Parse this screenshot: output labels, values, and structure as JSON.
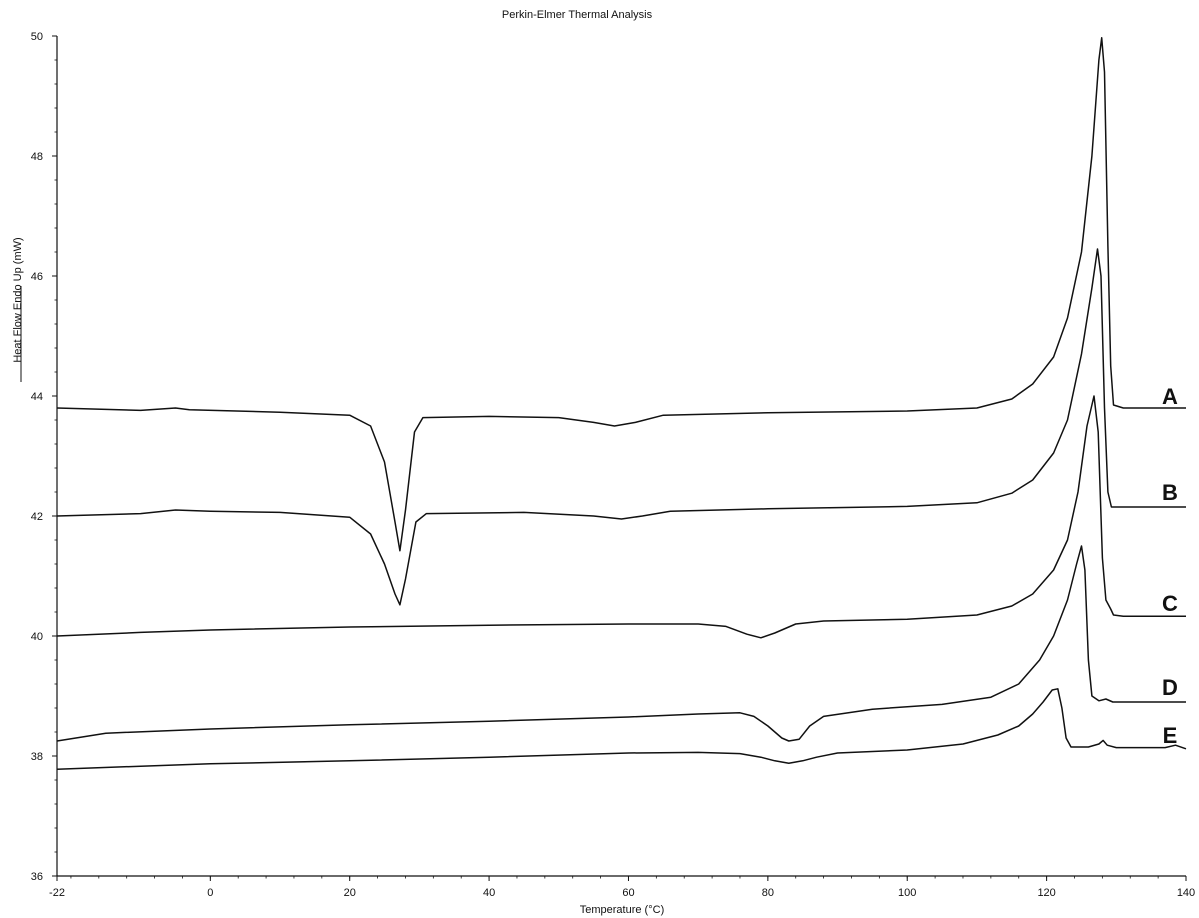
{
  "chart_data": {
    "type": "line",
    "title": "Perkin-Elmer Thermal Analysis",
    "xlabel": "Temperature (°C)",
    "ylabel": "Heat Flow Endo Up (mW)",
    "xlim": [
      -22,
      140
    ],
    "ylim": [
      36,
      50
    ],
    "x_ticks": [
      -22,
      0,
      20,
      40,
      60,
      80,
      100,
      120,
      140
    ],
    "y_ticks": [
      36,
      38,
      40,
      42,
      44,
      46,
      48,
      50
    ],
    "grid": false,
    "series": [
      {
        "name": "A",
        "color": "#111111",
        "points": [
          [
            -22,
            43.8
          ],
          [
            -10,
            43.76
          ],
          [
            -5,
            43.8
          ],
          [
            -3,
            43.77
          ],
          [
            10,
            43.73
          ],
          [
            20,
            43.68
          ],
          [
            23,
            43.5
          ],
          [
            25,
            42.9
          ],
          [
            26.5,
            41.9
          ],
          [
            27.2,
            41.42
          ],
          [
            28,
            42.1
          ],
          [
            29.3,
            43.4
          ],
          [
            30.5,
            43.64
          ],
          [
            40,
            43.66
          ],
          [
            50,
            43.64
          ],
          [
            55,
            43.56
          ],
          [
            58,
            43.5
          ],
          [
            61,
            43.56
          ],
          [
            65,
            43.68
          ],
          [
            80,
            43.72
          ],
          [
            100,
            43.75
          ],
          [
            110,
            43.8
          ],
          [
            115,
            43.95
          ],
          [
            118,
            44.2
          ],
          [
            121,
            44.65
          ],
          [
            123,
            45.3
          ],
          [
            125,
            46.4
          ],
          [
            126.5,
            48.0
          ],
          [
            127.5,
            49.6
          ],
          [
            127.9,
            49.97
          ],
          [
            128.3,
            49.4
          ],
          [
            128.8,
            46.5
          ],
          [
            129.2,
            44.5
          ],
          [
            129.6,
            43.85
          ],
          [
            131,
            43.8
          ],
          [
            140,
            43.8
          ]
        ],
        "label_y": 44.0
      },
      {
        "name": "B",
        "color": "#111111",
        "points": [
          [
            -22,
            42.0
          ],
          [
            -10,
            42.04
          ],
          [
            -5,
            42.1
          ],
          [
            0,
            42.08
          ],
          [
            10,
            42.06
          ],
          [
            20,
            41.98
          ],
          [
            23,
            41.7
          ],
          [
            25,
            41.2
          ],
          [
            26.5,
            40.7
          ],
          [
            27.2,
            40.52
          ],
          [
            28,
            40.95
          ],
          [
            29.5,
            41.9
          ],
          [
            31,
            42.04
          ],
          [
            45,
            42.06
          ],
          [
            55,
            42.0
          ],
          [
            59,
            41.95
          ],
          [
            62,
            42.0
          ],
          [
            66,
            42.08
          ],
          [
            80,
            42.12
          ],
          [
            100,
            42.16
          ],
          [
            110,
            42.22
          ],
          [
            115,
            42.38
          ],
          [
            118,
            42.6
          ],
          [
            121,
            43.05
          ],
          [
            123,
            43.6
          ],
          [
            125,
            44.7
          ],
          [
            126.5,
            45.8
          ],
          [
            127.3,
            46.45
          ],
          [
            127.8,
            46.0
          ],
          [
            128.3,
            43.8
          ],
          [
            128.8,
            42.4
          ],
          [
            129.3,
            42.15
          ],
          [
            131,
            42.15
          ],
          [
            140,
            42.15
          ]
        ],
        "label_y": 42.4
      },
      {
        "name": "C",
        "color": "#111111",
        "points": [
          [
            -22,
            40.0
          ],
          [
            -10,
            40.06
          ],
          [
            0,
            40.1
          ],
          [
            20,
            40.15
          ],
          [
            40,
            40.18
          ],
          [
            60,
            40.2
          ],
          [
            70,
            40.2
          ],
          [
            74,
            40.16
          ],
          [
            77,
            40.03
          ],
          [
            79,
            39.97
          ],
          [
            81,
            40.05
          ],
          [
            84,
            40.2
          ],
          [
            88,
            40.25
          ],
          [
            100,
            40.28
          ],
          [
            110,
            40.35
          ],
          [
            115,
            40.5
          ],
          [
            118,
            40.7
          ],
          [
            121,
            41.1
          ],
          [
            123,
            41.6
          ],
          [
            124.5,
            42.4
          ],
          [
            125.8,
            43.5
          ],
          [
            126.8,
            44.0
          ],
          [
            127.4,
            43.4
          ],
          [
            128.0,
            41.3
          ],
          [
            128.5,
            40.6
          ],
          [
            129.2,
            40.45
          ],
          [
            129.6,
            40.35
          ],
          [
            131,
            40.33
          ],
          [
            140,
            40.33
          ]
        ],
        "label_y": 40.55
      },
      {
        "name": "D",
        "color": "#111111",
        "points": [
          [
            -22,
            38.25
          ],
          [
            -15,
            38.38
          ],
          [
            0,
            38.45
          ],
          [
            20,
            38.52
          ],
          [
            40,
            38.58
          ],
          [
            60,
            38.65
          ],
          [
            70,
            38.7
          ],
          [
            76,
            38.72
          ],
          [
            78,
            38.66
          ],
          [
            80,
            38.5
          ],
          [
            82,
            38.3
          ],
          [
            83,
            38.25
          ],
          [
            84.5,
            38.28
          ],
          [
            86,
            38.5
          ],
          [
            88,
            38.66
          ],
          [
            95,
            38.78
          ],
          [
            105,
            38.86
          ],
          [
            112,
            38.98
          ],
          [
            116,
            39.2
          ],
          [
            119,
            39.6
          ],
          [
            121,
            40.0
          ],
          [
            123,
            40.6
          ],
          [
            124.3,
            41.2
          ],
          [
            125.0,
            41.5
          ],
          [
            125.5,
            41.1
          ],
          [
            126.0,
            39.6
          ],
          [
            126.5,
            39.0
          ],
          [
            127.5,
            38.92
          ],
          [
            128.5,
            38.95
          ],
          [
            129.5,
            38.9
          ],
          [
            140,
            38.9
          ]
        ],
        "label_y": 39.15
      },
      {
        "name": "E",
        "color": "#111111",
        "points": [
          [
            -22,
            37.78
          ],
          [
            -10,
            37.83
          ],
          [
            0,
            37.87
          ],
          [
            20,
            37.92
          ],
          [
            40,
            37.98
          ],
          [
            60,
            38.05
          ],
          [
            70,
            38.06
          ],
          [
            76,
            38.04
          ],
          [
            79,
            37.98
          ],
          [
            81,
            37.92
          ],
          [
            83,
            37.88
          ],
          [
            85,
            37.92
          ],
          [
            87,
            37.98
          ],
          [
            90,
            38.05
          ],
          [
            100,
            38.1
          ],
          [
            108,
            38.2
          ],
          [
            113,
            38.35
          ],
          [
            116,
            38.5
          ],
          [
            118,
            38.7
          ],
          [
            119.5,
            38.9
          ],
          [
            120.8,
            39.1
          ],
          [
            121.6,
            39.12
          ],
          [
            122.2,
            38.8
          ],
          [
            122.8,
            38.3
          ],
          [
            123.5,
            38.15
          ],
          [
            126,
            38.15
          ],
          [
            127.5,
            38.2
          ],
          [
            128.1,
            38.26
          ],
          [
            128.7,
            38.18
          ],
          [
            130,
            38.14
          ],
          [
            137,
            38.14
          ],
          [
            138.5,
            38.18
          ],
          [
            140,
            38.12
          ]
        ],
        "label_y": 38.35
      }
    ]
  }
}
